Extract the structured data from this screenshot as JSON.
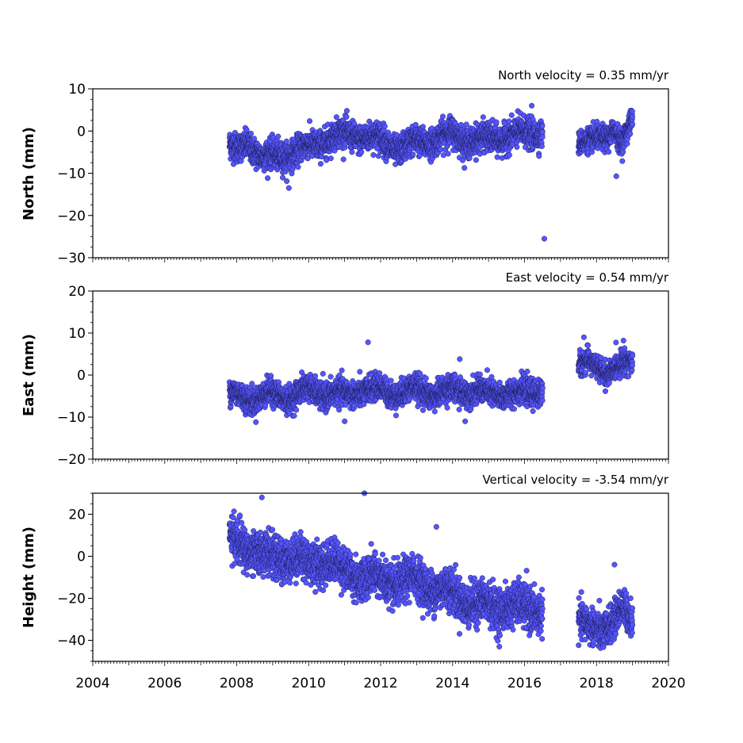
{
  "chart_data": [
    {
      "type": "scatter",
      "title": "North velocity = 0.35 mm/yr",
      "ylabel": "North (mm)",
      "xlim": [
        2004,
        2020
      ],
      "ylim": [
        -30,
        10
      ],
      "yticks": [
        "10",
        "0",
        "−10",
        "−20",
        "−30"
      ],
      "marker_color": "#5555ff",
      "segments": [
        {
          "x": [
            2007.8,
            2008.0,
            2008.3,
            2008.7,
            2009.0,
            2009.5,
            2010.0,
            2010.5,
            2011.0,
            2011.5,
            2012.0,
            2012.5,
            2013.0,
            2013.5,
            2014.0,
            2014.5,
            2015.0,
            2015.5,
            2016.0,
            2016.5
          ],
          "y": [
            -4,
            -5,
            -3,
            -7,
            -6,
            -5,
            -3,
            -2,
            -1,
            -2,
            -2,
            -4,
            -2,
            -2,
            -1,
            -3,
            -2,
            -1,
            0,
            0
          ],
          "spread": 2.2
        },
        {
          "x": [
            2017.5,
            2017.8,
            2018.0,
            2018.3,
            2018.5,
            2018.7,
            2019.0
          ],
          "y": [
            -3,
            -3,
            -2,
            -1,
            1,
            -3,
            3
          ],
          "spread": 1.8
        }
      ],
      "outliers": [
        {
          "x": 2009.45,
          "y": -13.5
        },
        {
          "x": 2016.55,
          "y": -25.5
        },
        {
          "x": 2018.55,
          "y": -10.7
        },
        {
          "x": 2016.2,
          "y": 6
        }
      ]
    },
    {
      "type": "scatter",
      "title": "East velocity = 0.54 mm/yr",
      "ylabel": "East (mm)",
      "xlim": [
        2004,
        2020
      ],
      "ylim": [
        -20,
        20
      ],
      "yticks": [
        "20",
        "10",
        "0",
        "−10",
        "−20"
      ],
      "marker_color": "#5555ff",
      "segments": [
        {
          "x": [
            2007.8,
            2008.0,
            2008.5,
            2009.0,
            2009.5,
            2010.0,
            2010.5,
            2011.0,
            2011.5,
            2012.0,
            2012.5,
            2013.0,
            2013.5,
            2014.0,
            2014.5,
            2015.0,
            2015.5,
            2016.0,
            2016.5
          ],
          "y": [
            -5,
            -5,
            -6,
            -4,
            -5,
            -3,
            -5,
            -5,
            -4,
            -3,
            -4,
            -3,
            -5,
            -4,
            -4,
            -4,
            -4,
            -4,
            -4
          ],
          "spread": 2.0
        },
        {
          "x": [
            2017.5,
            2017.8,
            2018.0,
            2018.3,
            2018.6,
            2019.0
          ],
          "y": [
            3,
            3,
            2,
            1,
            3,
            3
          ],
          "spread": 1.8
        }
      ],
      "outliers": [
        {
          "x": 2011.65,
          "y": 7.8
        },
        {
          "x": 2014.2,
          "y": 3.8
        },
        {
          "x": 2017.65,
          "y": 9
        },
        {
          "x": 2018.75,
          "y": 8.2
        },
        {
          "x": 2014.35,
          "y": -11
        },
        {
          "x": 2011.0,
          "y": -11
        }
      ]
    },
    {
      "type": "scatter",
      "title": "Vertical velocity = -3.54 mm/yr",
      "ylabel": "Height (mm)",
      "xlim": [
        2004,
        2020
      ],
      "ylim": [
        -50,
        30
      ],
      "yticks": [
        "20",
        "0",
        "−20",
        "−40"
      ],
      "marker_color": "#5555ff",
      "segments": [
        {
          "x": [
            2007.8,
            2008.2,
            2008.6,
            2009.0,
            2009.5,
            2010.0,
            2010.5,
            2011.0,
            2011.5,
            2012.0,
            2012.5,
            2013.0,
            2013.5,
            2014.0,
            2014.5,
            2015.0,
            2015.5,
            2016.0,
            2016.5
          ],
          "y": [
            6,
            5,
            3,
            0,
            1,
            -5,
            -3,
            -8,
            -8,
            -10,
            -12,
            -12,
            -17,
            -18,
            -21,
            -22,
            -23,
            -26,
            -27
          ],
          "spread": 6.5
        },
        {
          "x": [
            2017.5,
            2017.8,
            2018.1,
            2018.4,
            2018.7,
            2019.0
          ],
          "y": [
            -28,
            -33,
            -35,
            -30,
            -25,
            -33
          ],
          "spread": 5.5
        }
      ],
      "outliers": [
        {
          "x": 2008.7,
          "y": 28
        },
        {
          "x": 2011.55,
          "y": 30
        },
        {
          "x": 2013.55,
          "y": 14
        },
        {
          "x": 2015.3,
          "y": -43
        },
        {
          "x": 2018.5,
          "y": -4
        }
      ]
    }
  ],
  "x_ticks": [
    "2004",
    "2006",
    "2008",
    "2010",
    "2012",
    "2014",
    "2016",
    "2018",
    "2020"
  ]
}
